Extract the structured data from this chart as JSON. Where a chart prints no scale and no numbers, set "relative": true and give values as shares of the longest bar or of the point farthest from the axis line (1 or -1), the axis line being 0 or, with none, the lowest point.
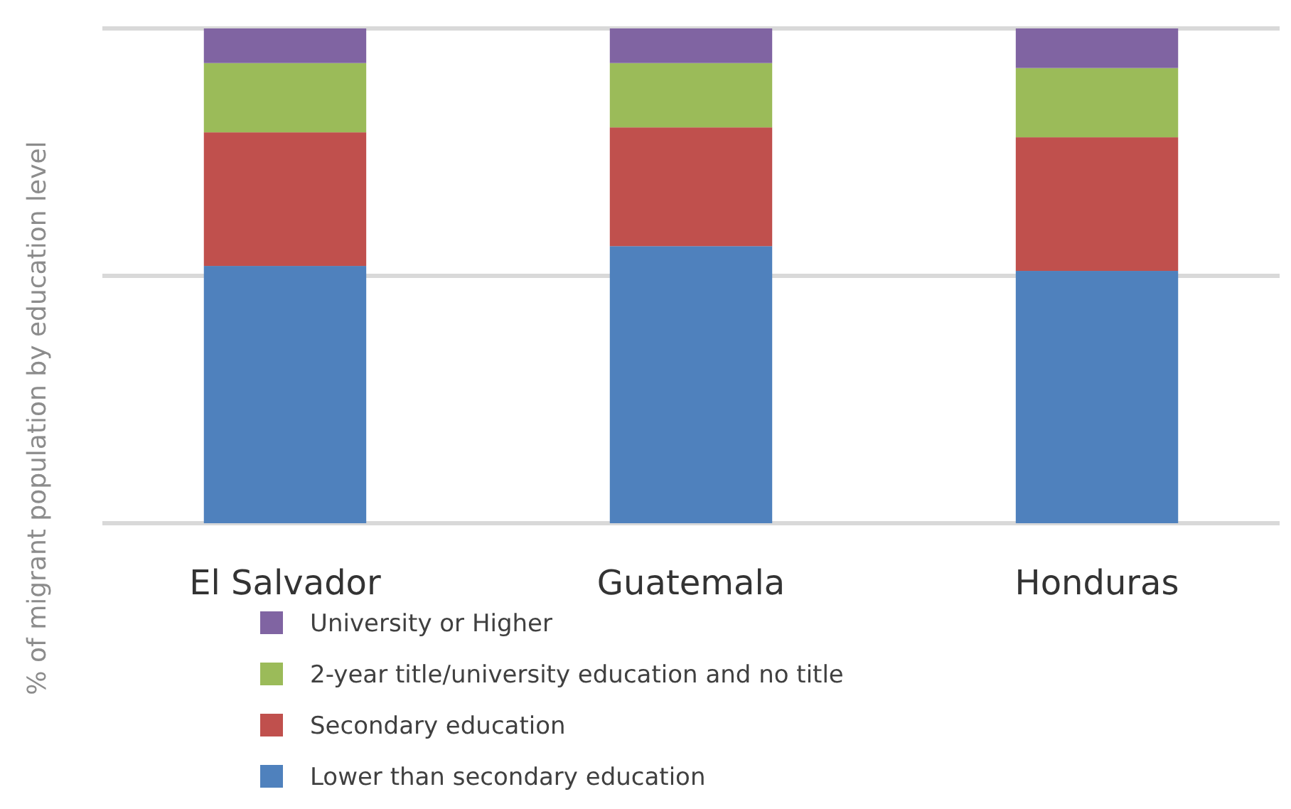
{
  "chart_data": {
    "type": "bar",
    "stacked": true,
    "relative": true,
    "ylabel": "% of migrant population by education level",
    "categories": [
      "El Salvador",
      "Guatemala",
      "Honduras"
    ],
    "series": [
      {
        "name": "Lower than secondary education",
        "color": "#4f81bd",
        "values": [
          0.52,
          0.56,
          0.51
        ]
      },
      {
        "name": "Secondary education",
        "color": "#c0504d",
        "values": [
          0.27,
          0.24,
          0.27
        ]
      },
      {
        "name": "2-year title/university education and no title",
        "color": "#9bbb59",
        "values": [
          0.14,
          0.13,
          0.14
        ]
      },
      {
        "name": "University or Higher",
        "color": "#8064a2",
        "values": [
          0.07,
          0.07,
          0.08
        ]
      }
    ],
    "ref_lines": [
      {
        "axis": "y",
        "value": 0.5,
        "color": "#d9d9d9"
      },
      {
        "axis": "y",
        "value": 1,
        "color": "#d9d9d9"
      }
    ],
    "legend": "bottom"
  }
}
